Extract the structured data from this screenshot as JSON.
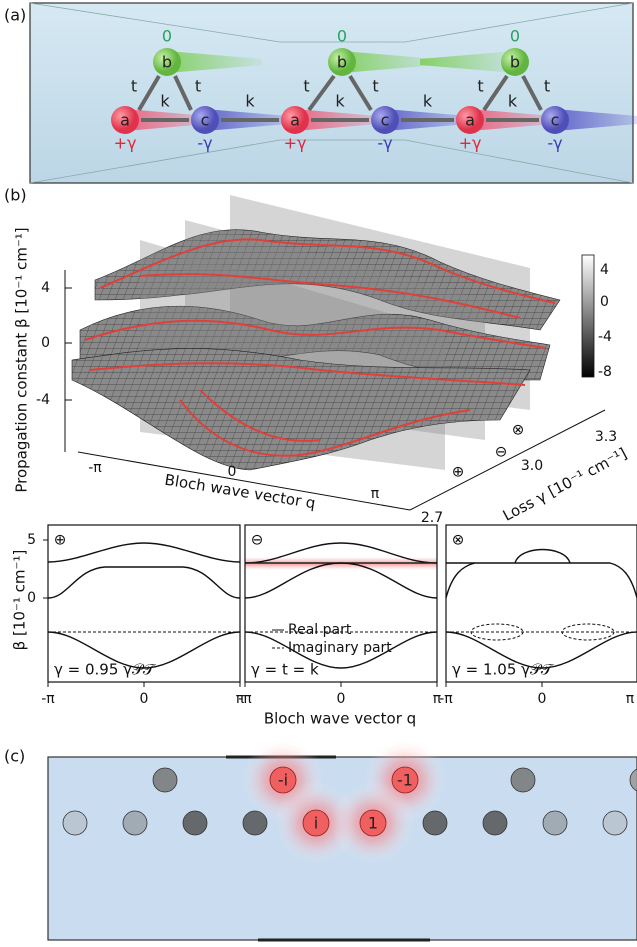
{
  "panel_a": {
    "label": "(a)",
    "cells": [
      {
        "a": "a",
        "b": "b",
        "c": "c",
        "b_onsite": "0",
        "a_onsite": "+γ",
        "c_onsite": "-γ"
      },
      {
        "a": "a",
        "b": "b",
        "c": "c",
        "b_onsite": "0",
        "a_onsite": "+γ",
        "c_onsite": "-γ"
      },
      {
        "a": "a",
        "b": "b",
        "c": "c",
        "b_onsite": "0",
        "a_onsite": "+γ",
        "c_onsite": "-γ"
      }
    ],
    "t_labels": [
      "t",
      "t",
      "t",
      "t",
      "t",
      "t"
    ],
    "k_labels": [
      "k",
      "k",
      "k",
      "k",
      "k"
    ]
  },
  "panel_b": {
    "label": "(b)",
    "surface_plot": {
      "y_label": "Propagation constant β [10⁻¹ cm⁻¹]",
      "y_ticks": [
        "4",
        "0",
        "-4"
      ],
      "q_label": "Bloch wave vector q",
      "q_ticks": [
        "-π",
        "0",
        "π"
      ],
      "loss_label": "Loss γ [10⁻¹ cm⁻¹]",
      "loss_ticks": [
        "2.7",
        "3.0",
        "3.3"
      ],
      "colorbar_ticks": [
        "4",
        "0",
        "-4",
        "-8"
      ],
      "plane_symbols": [
        "⊕",
        "⊖",
        "⊗"
      ]
    },
    "band_plots": {
      "y_label": "β [10⁻¹ cm⁻¹]",
      "y_ticks": [
        "5",
        "0"
      ],
      "x_label": "Bloch wave vector q",
      "panels": [
        {
          "symbol": "⊕",
          "x_ticks": [
            "-π",
            "0",
            "π"
          ],
          "annotation": "γ = 0.95 γ𝒫𝒯"
        },
        {
          "symbol": "⊖",
          "x_ticks": [
            "-π",
            "0",
            "π"
          ],
          "annotation": "γ = t = k"
        },
        {
          "symbol": "⊗",
          "x_ticks": [
            "-π",
            "0",
            "π"
          ],
          "annotation": "γ = 1.05 γ𝒫𝒯"
        }
      ],
      "legend": [
        "Real part",
        "Imaginary part"
      ]
    }
  },
  "panel_c": {
    "label": "(c)",
    "site_labels": [
      "-i",
      "-1",
      "i",
      "1"
    ]
  }
}
